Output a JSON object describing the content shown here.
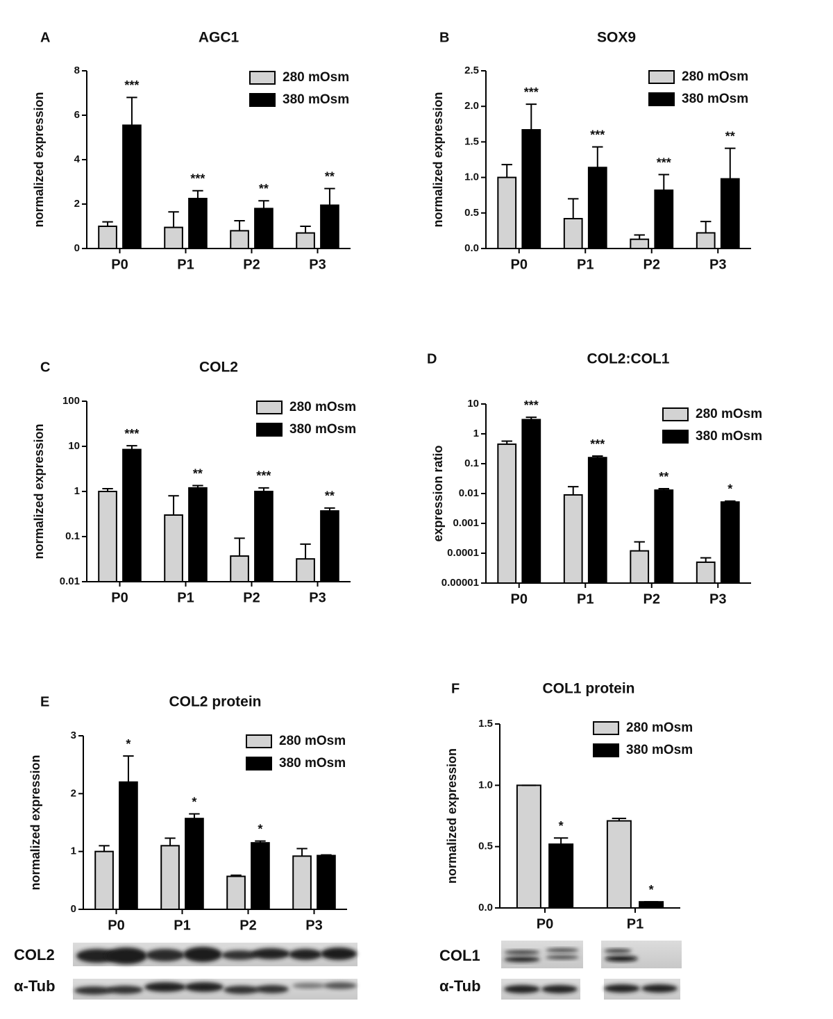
{
  "chart_data": [
    {
      "type": "bar",
      "panel": "A",
      "title": "AGC1",
      "ylabel": "normalized expression",
      "categories": [
        "P0",
        "P1",
        "P2",
        "P3"
      ],
      "series": [
        {
          "name": "280 mOsm",
          "color": "#d3d3d3",
          "values": [
            1.0,
            0.95,
            0.8,
            0.7
          ],
          "errors": [
            0.2,
            0.7,
            0.45,
            0.3
          ]
        },
        {
          "name": "380 mOsm",
          "color": "#000000",
          "values": [
            5.55,
            2.25,
            1.8,
            1.95
          ],
          "errors": [
            1.25,
            0.35,
            0.35,
            0.75
          ]
        }
      ],
      "significance": [
        "***",
        "***",
        "**",
        "**"
      ],
      "ylim": [
        0,
        8
      ],
      "yticks": [
        0,
        2,
        4,
        6,
        8
      ],
      "log_scale": false
    },
    {
      "type": "bar",
      "panel": "B",
      "title": "SOX9",
      "ylabel": "normalized expression",
      "categories": [
        "P0",
        "P1",
        "P2",
        "P3"
      ],
      "series": [
        {
          "name": "280 mOsm",
          "color": "#d3d3d3",
          "values": [
            1.0,
            0.42,
            0.13,
            0.22
          ],
          "errors": [
            0.18,
            0.28,
            0.06,
            0.16
          ]
        },
        {
          "name": "380 mOsm",
          "color": "#000000",
          "values": [
            1.67,
            1.14,
            0.82,
            0.98
          ],
          "errors": [
            0.36,
            0.29,
            0.22,
            0.43
          ]
        }
      ],
      "significance": [
        "***",
        "***",
        "***",
        "**"
      ],
      "ylim": [
        0,
        2.5
      ],
      "yticks": [
        {
          "value": 0,
          "label": "0.0"
        },
        0.5,
        {
          "value": 1,
          "label": "1.0"
        },
        1.5,
        {
          "value": 2,
          "label": "2.0"
        },
        2.5
      ],
      "log_scale": false
    },
    {
      "type": "bar",
      "panel": "C",
      "title": "COL2",
      "ylabel": "normalized expression",
      "categories": [
        "P0",
        "P1",
        "P2",
        "P3"
      ],
      "series": [
        {
          "name": "280 mOsm",
          "color": "#d3d3d3",
          "values": [
            1.0,
            0.3,
            0.037,
            0.032
          ],
          "errors": [
            0.15,
            0.5,
            0.055,
            0.036
          ]
        },
        {
          "name": "380 mOsm",
          "color": "#000000",
          "values": [
            8.5,
            1.2,
            1.0,
            0.37
          ],
          "errors": [
            1.8,
            0.15,
            0.2,
            0.06
          ]
        }
      ],
      "significance": [
        "***",
        "**",
        "***",
        "**"
      ],
      "ylim": [
        0.01,
        100
      ],
      "yticks": [
        0.01,
        0.1,
        1,
        10,
        100
      ],
      "log_scale": true
    },
    {
      "type": "bar",
      "panel": "D",
      "title": "COL2:COL1",
      "ylabel": "expression ratio",
      "categories": [
        "P0",
        "P1",
        "P2",
        "P3"
      ],
      "series": [
        {
          "name": "280 mOsm",
          "color": "#d3d3d3",
          "values": [
            0.45,
            0.009,
            0.00012,
            5e-05
          ],
          "errors": [
            0.12,
            0.008,
            0.00012,
            2e-05
          ]
        },
        {
          "name": "380 mOsm",
          "color": "#000000",
          "values": [
            3.0,
            0.16,
            0.013,
            0.0052
          ],
          "errors": [
            0.6,
            0.02,
            0.0015,
            0.0004
          ]
        }
      ],
      "significance": [
        "***",
        "***",
        "**",
        "*"
      ],
      "ylim": [
        1e-05,
        10
      ],
      "yticks": [
        1e-05,
        0.0001,
        0.001,
        0.01,
        0.1,
        1,
        10
      ],
      "log_scale": true
    },
    {
      "type": "bar",
      "panel": "E",
      "title": "COL2 protein",
      "ylabel": "normalized expression",
      "categories": [
        "P0",
        "P1",
        "P2",
        "P3"
      ],
      "series": [
        {
          "name": "280 mOsm",
          "color": "#d3d3d3",
          "values": [
            1.0,
            1.1,
            0.57,
            0.92
          ],
          "errors": [
            0.1,
            0.13,
            0.02,
            0.13
          ]
        },
        {
          "name": "380 mOsm",
          "color": "#000000",
          "values": [
            2.2,
            1.57,
            1.15,
            0.93
          ],
          "errors": [
            0.45,
            0.08,
            0.03,
            0.01
          ]
        }
      ],
      "significance": [
        "*",
        "*",
        "*",
        null
      ],
      "ylim": [
        0,
        3
      ],
      "yticks": [
        0,
        1,
        2,
        3
      ],
      "log_scale": false,
      "blot_labels": [
        "COL2",
        "α-Tub"
      ]
    },
    {
      "type": "bar",
      "panel": "F",
      "title": "COL1 protein",
      "ylabel": "normalized expression",
      "categories": [
        "P0",
        "P1"
      ],
      "series": [
        {
          "name": "280 mOsm",
          "color": "#d3d3d3",
          "values": [
            1.0,
            0.71
          ],
          "errors": [
            0,
            0.02
          ]
        },
        {
          "name": "380 mOsm",
          "color": "#000000",
          "values": [
            0.52,
            0.05
          ],
          "errors": [
            0.05,
            0
          ]
        }
      ],
      "significance": [
        "*",
        "*"
      ],
      "ylim": [
        0,
        1.5
      ],
      "yticks": [
        {
          "value": 0,
          "label": "0.0"
        },
        0.5,
        {
          "value": 1,
          "label": "1.0"
        },
        1.5
      ],
      "log_scale": false,
      "blot_labels": [
        "COL1",
        "α-Tub"
      ]
    }
  ]
}
